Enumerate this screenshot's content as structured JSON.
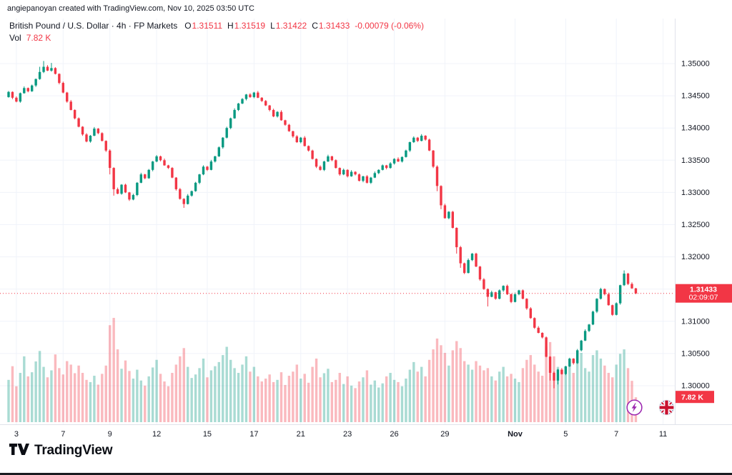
{
  "attribution": "angiepanoyan created with TradingView.com, Nov 10, 2025 03:50 UTC",
  "legend": {
    "title_line": "British Pound / U.S. Dollar · 4h · FP Markets",
    "keys": {
      "o": "O",
      "h": "H",
      "l": "L",
      "c": "C"
    },
    "values": {
      "o": "1.31511",
      "h": "1.31519",
      "l": "1.31422",
      "c": "1.31433"
    },
    "change": "-0.00079 (-0.06%)",
    "vol_key": "Vol",
    "vol_value": "7.82 K"
  },
  "footer": {
    "brand": "TradingView"
  },
  "chart_data": {
    "type": "candlestick",
    "symbol": "British Pound / U.S. Dollar",
    "interval": "4h",
    "feed": "FP Markets",
    "price_unit": 1e-05,
    "y_ticks": [
      "1.35000",
      "1.34500",
      "1.34000",
      "1.33500",
      "1.33000",
      "1.32500",
      "1.32000",
      "1.31500",
      "1.31000",
      "1.30500",
      "1.30000"
    ],
    "x_ticks": [
      {
        "label": "3",
        "i": 2
      },
      {
        "label": "7",
        "i": 14
      },
      {
        "label": "9",
        "i": 26
      },
      {
        "label": "12",
        "i": 38
      },
      {
        "label": "15",
        "i": 51
      },
      {
        "label": "17",
        "i": 63
      },
      {
        "label": "21",
        "i": 75
      },
      {
        "label": "23",
        "i": 87
      },
      {
        "label": "26",
        "i": 99
      },
      {
        "label": "29",
        "i": 112
      },
      {
        "label": "Nov",
        "i": 130,
        "bold": true
      },
      {
        "label": "5",
        "i": 143
      },
      {
        "label": "7",
        "i": 156
      },
      {
        "label": "11",
        "i": 168
      }
    ],
    "price_axis": {
      "last_price": "1.31433",
      "countdown": "02:09:07",
      "volume_label": "7.82 K"
    },
    "colors": {
      "up": "#089981",
      "down": "#f23645",
      "vol_up": "rgba(8,153,129,0.35)",
      "vol_down": "rgba(242,54,69,0.35)",
      "grid": "#f0f3fa",
      "sep": "#e0e3eb",
      "axis_text": "#131722"
    },
    "candles": {
      "open0": 134480,
      "close": [
        134560,
        134470,
        134410,
        134540,
        134620,
        134570,
        134660,
        134760,
        134870,
        134950,
        134890,
        134930,
        134840,
        134700,
        134550,
        134410,
        134280,
        134150,
        134020,
        133900,
        133790,
        133880,
        133990,
        133920,
        133800,
        133650,
        133380,
        133050,
        132980,
        133120,
        133000,
        132890,
        132960,
        133150,
        133280,
        133220,
        133350,
        133480,
        133560,
        133500,
        133420,
        133380,
        133230,
        133050,
        132900,
        132820,
        132950,
        133020,
        133150,
        133280,
        133400,
        133350,
        133480,
        133560,
        133700,
        133850,
        134000,
        134150,
        134280,
        134380,
        134450,
        134520,
        134480,
        134550,
        134470,
        134420,
        134350,
        134280,
        134180,
        134250,
        134120,
        134050,
        133950,
        133870,
        133780,
        133850,
        133720,
        133650,
        133520,
        133400,
        133350,
        133480,
        133560,
        133500,
        133380,
        133280,
        133350,
        133250,
        133320,
        133280,
        133180,
        133250,
        133150,
        133230,
        133300,
        133350,
        133420,
        133380,
        133450,
        133520,
        133480,
        133550,
        133650,
        133780,
        133850,
        133800,
        133880,
        133820,
        133650,
        133400,
        133100,
        132800,
        132600,
        132700,
        132450,
        132150,
        131900,
        131750,
        131950,
        132050,
        131850,
        131650,
        131500,
        131380,
        131450,
        131350,
        131480,
        131550,
        131420,
        131300,
        131420,
        131480,
        131350,
        131200,
        131050,
        130900,
        130820,
        130750,
        130450,
        130200,
        130080,
        130250,
        130180,
        130300,
        130420,
        130350,
        130550,
        130700,
        130850,
        130950,
        131150,
        131350,
        131500,
        131420,
        131250,
        131100,
        131280,
        131560,
        131740,
        131580,
        131511,
        131433
      ],
      "volume": [
        13.3,
        17.6,
        11.3,
        15.5,
        20.7,
        14.4,
        15.7,
        19.1,
        22.4,
        17.4,
        14.1,
        16.3,
        21.3,
        17.0,
        15.0,
        19.2,
        18.1,
        15.4,
        17.8,
        15.5,
        13.3,
        12.6,
        14.6,
        11.8,
        15.2,
        17.8,
        30.5,
        32.8,
        22.9,
        16.8,
        19.4,
        16.1,
        13.7,
        16.5,
        13.1,
        11.5,
        14.4,
        17.2,
        19.6,
        15.2,
        12.8,
        11.3,
        15.5,
        18.1,
        20.7,
        23.3,
        17.4,
        13.9,
        15.0,
        17.0,
        20.0,
        14.1,
        16.3,
        17.6,
        18.9,
        21.1,
        23.7,
        19.6,
        17.0,
        15.5,
        18.1,
        20.7,
        15.9,
        17.4,
        14.4,
        12.8,
        13.7,
        15.0,
        12.6,
        13.3,
        15.7,
        11.7,
        14.6,
        15.9,
        18.1,
        13.7,
        15.2,
        12.4,
        17.4,
        20.0,
        14.1,
        15.4,
        16.8,
        12.6,
        13.3,
        15.5,
        12.0,
        14.4,
        11.5,
        10.7,
        12.8,
        14.1,
        16.3,
        11.8,
        13.1,
        10.9,
        12.2,
        14.4,
        15.5,
        13.3,
        12.6,
        11.3,
        13.7,
        16.5,
        18.9,
        15.9,
        17.4,
        14.4,
        19.6,
        22.9,
        26.3,
        24.2,
        21.8,
        17.8,
        22.6,
        25.5,
        23.3,
        19.2,
        18.1,
        16.5,
        19.2,
        17.8,
        16.3,
        17.0,
        14.4,
        13.1,
        15.9,
        17.4,
        14.4,
        15.2,
        13.7,
        12.6,
        17.0,
        19.6,
        21.1,
        18.1,
        15.9,
        14.6,
        23.7,
        25.2,
        20.7,
        17.4,
        16.3,
        15.0,
        17.8,
        15.5,
        18.9,
        21.8,
        17.0,
        15.9,
        21.1,
        22.6,
        20.0,
        17.8,
        15.5,
        14.1,
        18.1,
        21.5,
        22.9,
        17.0,
        13.0,
        7.82
      ],
      "wick_up": [
        14,
        8,
        20,
        11,
        25,
        9
      ],
      "wick_down": [
        9,
        22,
        12,
        18,
        7,
        16
      ],
      "high_overrides": {
        "8": 134950,
        "9": 135040,
        "11": 135010,
        "158": 131790,
        "161": 131519
      },
      "low_overrides": {
        "26": 133280,
        "27": 132950,
        "45": 132760,
        "110": 133020,
        "111": 132740,
        "115": 132050,
        "116": 131830,
        "123": 131230,
        "139": 130080,
        "140": 129960,
        "141": 130020,
        "161": 131422
      }
    }
  }
}
